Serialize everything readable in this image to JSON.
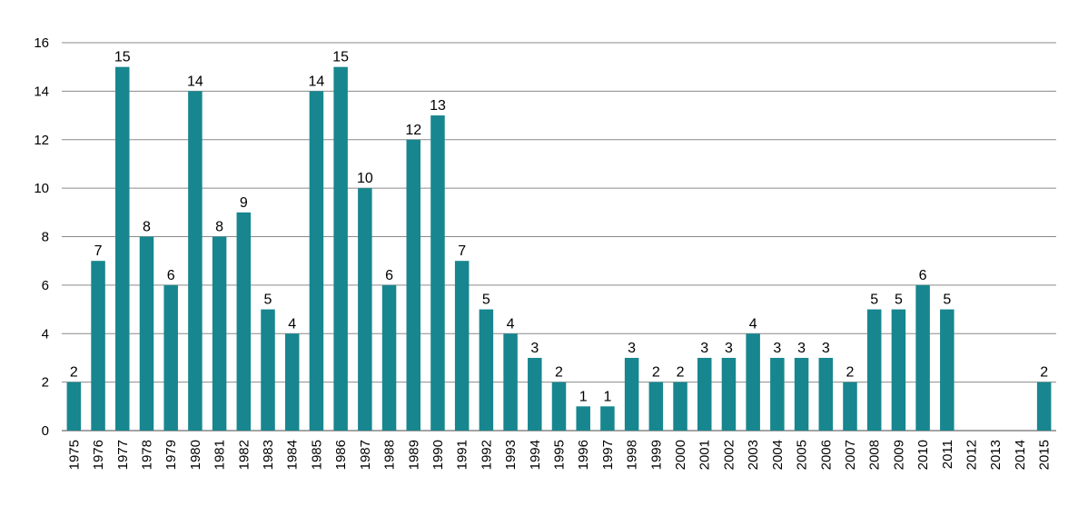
{
  "chart_data": {
    "type": "bar",
    "title": "",
    "xlabel": "",
    "ylabel": "",
    "ylim": [
      0,
      16
    ],
    "yticks": [
      0,
      2,
      4,
      6,
      8,
      10,
      12,
      14,
      16
    ],
    "grid": true,
    "legend": "none",
    "color": "#17868f",
    "categories": [
      "1975",
      "1976",
      "1977",
      "1978",
      "1979",
      "1980",
      "1981",
      "1982",
      "1983",
      "1984",
      "1985",
      "1986",
      "1987",
      "1988",
      "1989",
      "1990",
      "1991",
      "1992",
      "1993",
      "1994",
      "1995",
      "1996",
      "1997",
      "1998",
      "1999",
      "2000",
      "2001",
      "2002",
      "2003",
      "2004",
      "2005",
      "2006",
      "2007",
      "2008",
      "2009",
      "2010",
      "2011",
      "2012",
      "2013",
      "2014",
      "2015"
    ],
    "values": [
      2,
      7,
      15,
      8,
      6,
      14,
      8,
      9,
      5,
      4,
      14,
      15,
      10,
      6,
      12,
      13,
      7,
      5,
      4,
      3,
      2,
      1,
      1,
      3,
      2,
      2,
      3,
      3,
      4,
      3,
      3,
      3,
      2,
      5,
      5,
      6,
      5,
      0,
      0,
      0,
      2
    ],
    "data_labels": [
      "2",
      "7",
      "15",
      "8",
      "6",
      "14",
      "8",
      "9",
      "5",
      "4",
      "14",
      "15",
      "10",
      "6",
      "12",
      "13",
      "7",
      "5",
      "4",
      "3",
      "2",
      "1",
      "1",
      "3",
      "2",
      "2",
      "3",
      "3",
      "4",
      "3",
      "3",
      "3",
      "2",
      "5",
      "5",
      "6",
      "5",
      "",
      "",
      "",
      "2"
    ]
  }
}
